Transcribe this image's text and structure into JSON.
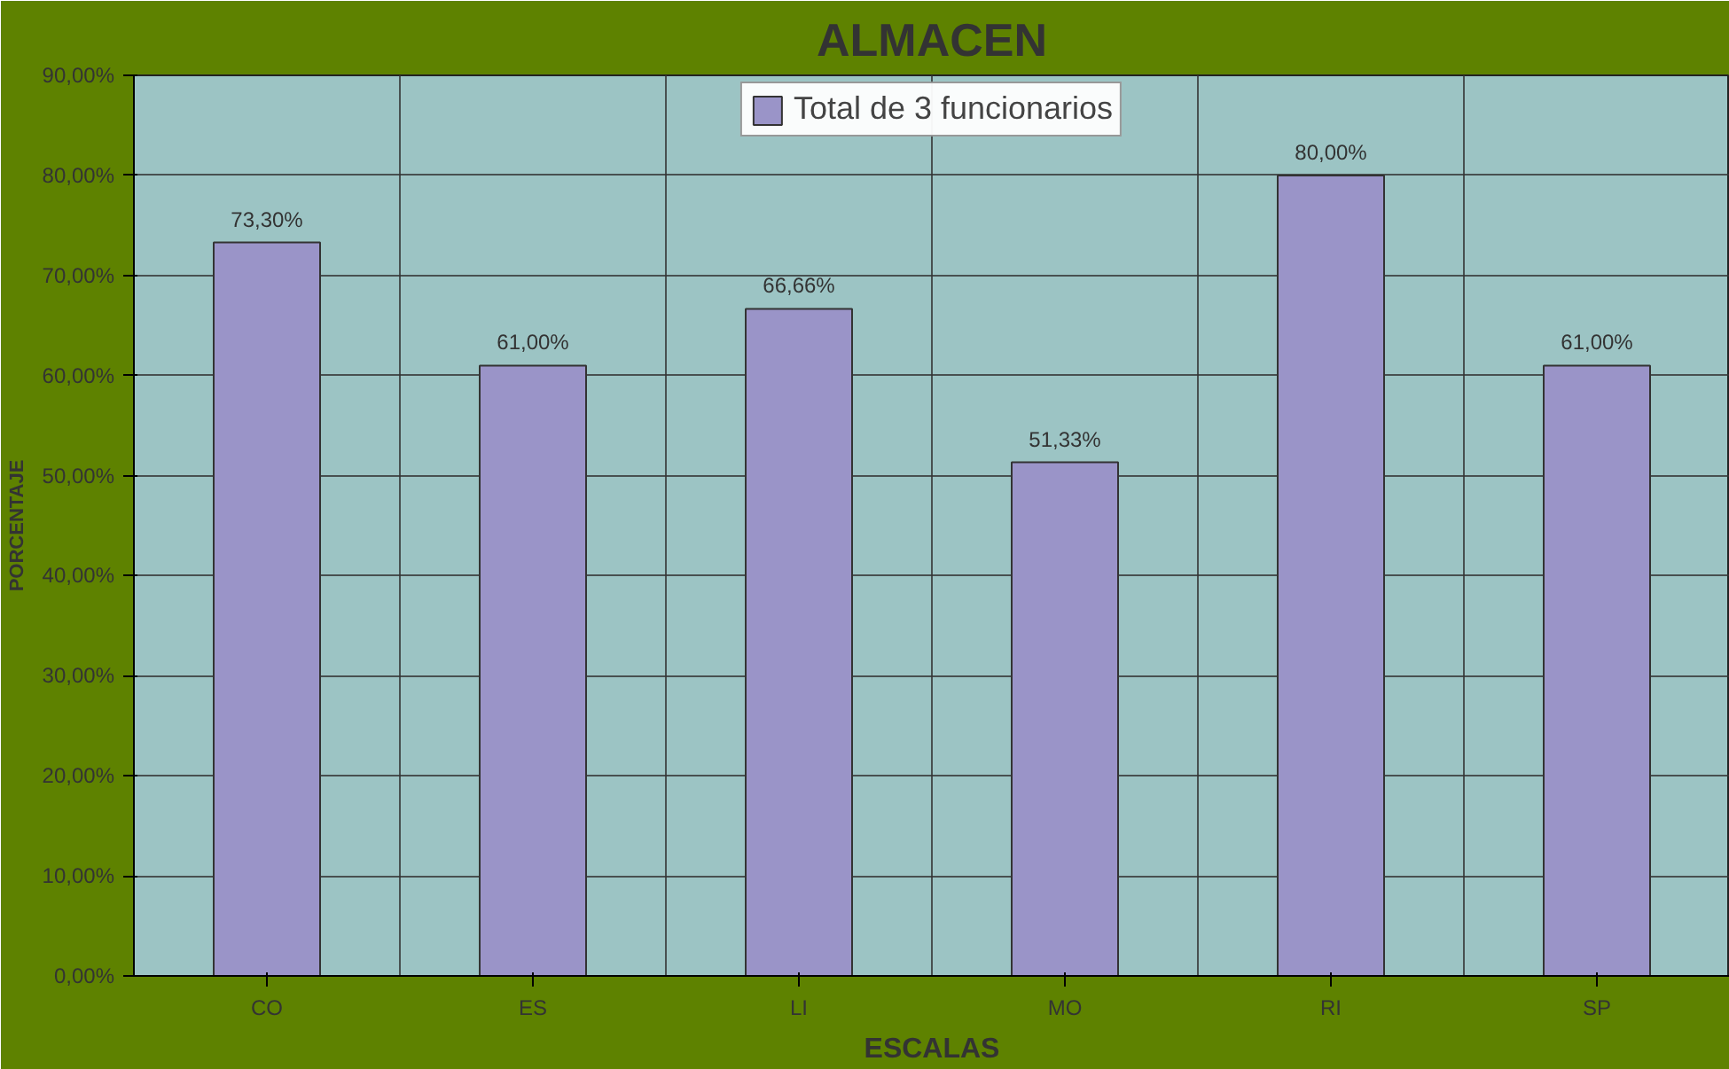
{
  "chart_data": {
    "type": "bar",
    "title": "ALMACEN",
    "xlabel": "ESCALAS",
    "ylabel": "PORCENTAJE",
    "categories": [
      "CO",
      "ES",
      "LI",
      "MO",
      "RI",
      "SP"
    ],
    "series": [
      {
        "name": "Total de 3 funcionarios",
        "color": "#9a94c8",
        "values": [
          73.3,
          61.0,
          66.66,
          51.33,
          80.0,
          61.0
        ],
        "value_labels": [
          "73,30%",
          "61,00%",
          "66,66%",
          "51,33%",
          "80,00%",
          "61,00%"
        ]
      }
    ],
    "ylim": [
      0,
      90
    ],
    "yticks": [
      {
        "value": 0,
        "label": "0,00%"
      },
      {
        "value": 10,
        "label": "10,00%"
      },
      {
        "value": 20,
        "label": "20,00%"
      },
      {
        "value": 30,
        "label": "30,00%"
      },
      {
        "value": 40,
        "label": "40,00%"
      },
      {
        "value": 50,
        "label": "50,00%"
      },
      {
        "value": 60,
        "label": "60,00%"
      },
      {
        "value": 70,
        "label": "70,00%"
      },
      {
        "value": 80,
        "label": "80,00%"
      },
      {
        "value": 90,
        "label": "90,00%"
      }
    ],
    "grid": true,
    "legend": "top"
  }
}
